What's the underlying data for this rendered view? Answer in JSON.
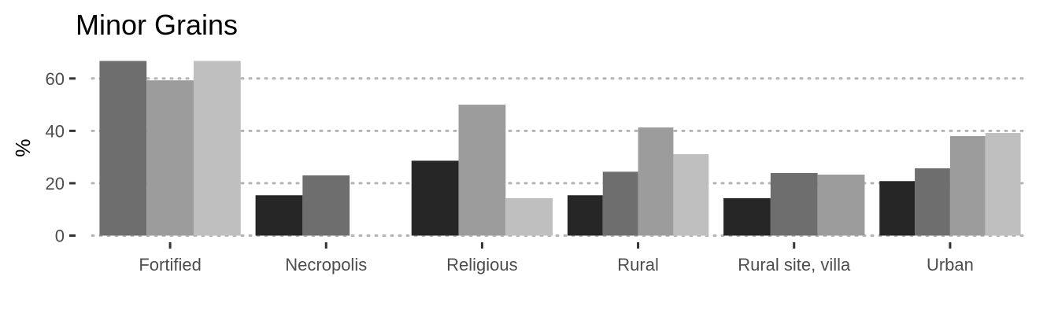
{
  "chart_data": {
    "type": "bar",
    "title": "Minor Grains",
    "xlabel": "",
    "ylabel": "%",
    "ylim": [
      0,
      70
    ],
    "yticks": [
      0,
      20,
      40,
      60
    ],
    "grid": "horizontal dotted",
    "legend": "none",
    "groups": [
      {
        "category": "Fortified",
        "bars": [
          {
            "value": 66.7,
            "color": "#6e6e6e"
          },
          {
            "value": 59.3,
            "color": "#9c9c9c"
          },
          {
            "value": 66.7,
            "color": "#bfbfbf"
          }
        ]
      },
      {
        "category": "Necropolis",
        "bars": [
          {
            "value": 15.4,
            "color": "#262626"
          },
          {
            "value": 23.0,
            "color": "#6e6e6e"
          },
          {
            "value": null,
            "color": "#9c9c9c"
          }
        ]
      },
      {
        "category": "Religious",
        "bars": [
          {
            "value": 28.6,
            "color": "#262626"
          },
          {
            "value": 50.0,
            "color": "#9c9c9c"
          },
          {
            "value": 14.3,
            "color": "#bfbfbf"
          }
        ]
      },
      {
        "category": "Rural",
        "bars": [
          {
            "value": 15.4,
            "color": "#262626"
          },
          {
            "value": 24.4,
            "color": "#6e6e6e"
          },
          {
            "value": 41.3,
            "color": "#9c9c9c"
          },
          {
            "value": 31.1,
            "color": "#bfbfbf"
          }
        ]
      },
      {
        "category": "Rural site, villa",
        "bars": [
          {
            "value": 14.3,
            "color": "#262626"
          },
          {
            "value": 23.9,
            "color": "#6e6e6e"
          },
          {
            "value": 23.3,
            "color": "#9c9c9c"
          }
        ]
      },
      {
        "category": "Urban",
        "bars": [
          {
            "value": 20.8,
            "color": "#262626"
          },
          {
            "value": 25.7,
            "color": "#6e6e6e"
          },
          {
            "value": 38.0,
            "color": "#9c9c9c"
          },
          {
            "value": 39.2,
            "color": "#bfbfbf"
          }
        ]
      }
    ]
  }
}
